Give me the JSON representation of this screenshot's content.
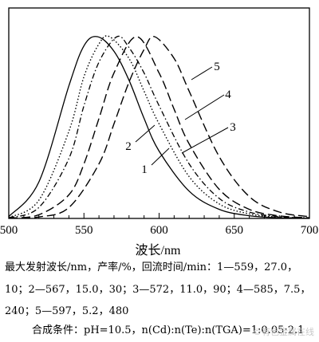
{
  "chart_data": {
    "type": "line",
    "title": "",
    "xlabel": "波长/nm",
    "ylabel": "",
    "xlim": [
      500,
      700
    ],
    "ylim": [
      0,
      1
    ],
    "xticks": [
      "500",
      "550",
      "600",
      "650",
      "700"
    ],
    "grid": false,
    "series": [
      {
        "name": "1",
        "peak": 559,
        "style": "solid",
        "x": [
          500,
          520,
          540,
          550,
          559,
          570,
          580,
          590,
          600,
          620,
          640,
          660,
          680,
          700
        ],
        "y": [
          0.01,
          0.2,
          0.73,
          0.95,
          1.0,
          0.92,
          0.76,
          0.55,
          0.37,
          0.15,
          0.05,
          0.015,
          0.004,
          0.001
        ]
      },
      {
        "name": "2",
        "peak": 567,
        "style": "dotted",
        "x": [
          500,
          520,
          540,
          550,
          560,
          567,
          580,
          590,
          600,
          620,
          640,
          660,
          680,
          700
        ],
        "y": [
          0.005,
          0.1,
          0.48,
          0.78,
          0.96,
          1.0,
          0.88,
          0.7,
          0.52,
          0.23,
          0.08,
          0.025,
          0.007,
          0.002
        ]
      },
      {
        "name": "3",
        "peak": 572,
        "style": "dash-dot",
        "x": [
          500,
          520,
          540,
          550,
          560,
          572,
          580,
          590,
          600,
          620,
          640,
          660,
          680,
          700
        ],
        "y": [
          0.004,
          0.06,
          0.33,
          0.62,
          0.86,
          1.0,
          0.94,
          0.8,
          0.62,
          0.3,
          0.11,
          0.035,
          0.01,
          0.003
        ]
      },
      {
        "name": "4",
        "peak": 585,
        "style": "long-dash",
        "x": [
          500,
          520,
          540,
          550,
          560,
          570,
          585,
          600,
          610,
          620,
          640,
          660,
          680,
          700
        ],
        "y": [
          0.002,
          0.02,
          0.13,
          0.3,
          0.55,
          0.8,
          1.0,
          0.8,
          0.6,
          0.41,
          0.16,
          0.05,
          0.014,
          0.004
        ]
      },
      {
        "name": "5",
        "peak": 597,
        "style": "long-dash",
        "x": [
          500,
          520,
          540,
          560,
          570,
          580,
          590,
          597,
          610,
          620,
          640,
          660,
          680,
          700
        ],
        "y": [
          0.001,
          0.008,
          0.06,
          0.3,
          0.52,
          0.75,
          0.93,
          1.0,
          0.88,
          0.7,
          0.34,
          0.12,
          0.035,
          0.01
        ]
      }
    ]
  },
  "caption": {
    "line1": "最大发射波长/nm，产率/%，回流时间/min：1—559，27.0，",
    "line2": "10；2—567，15.0，30；3—572，11.0，90；4—585，7.5，",
    "line3": "240；5—597，5.2，480",
    "line4": "合成条件：pH=10.5，n(Cd):n(Te):n(TGA)=1:0.05:2.1"
  },
  "watermark": "©有色金属在线"
}
